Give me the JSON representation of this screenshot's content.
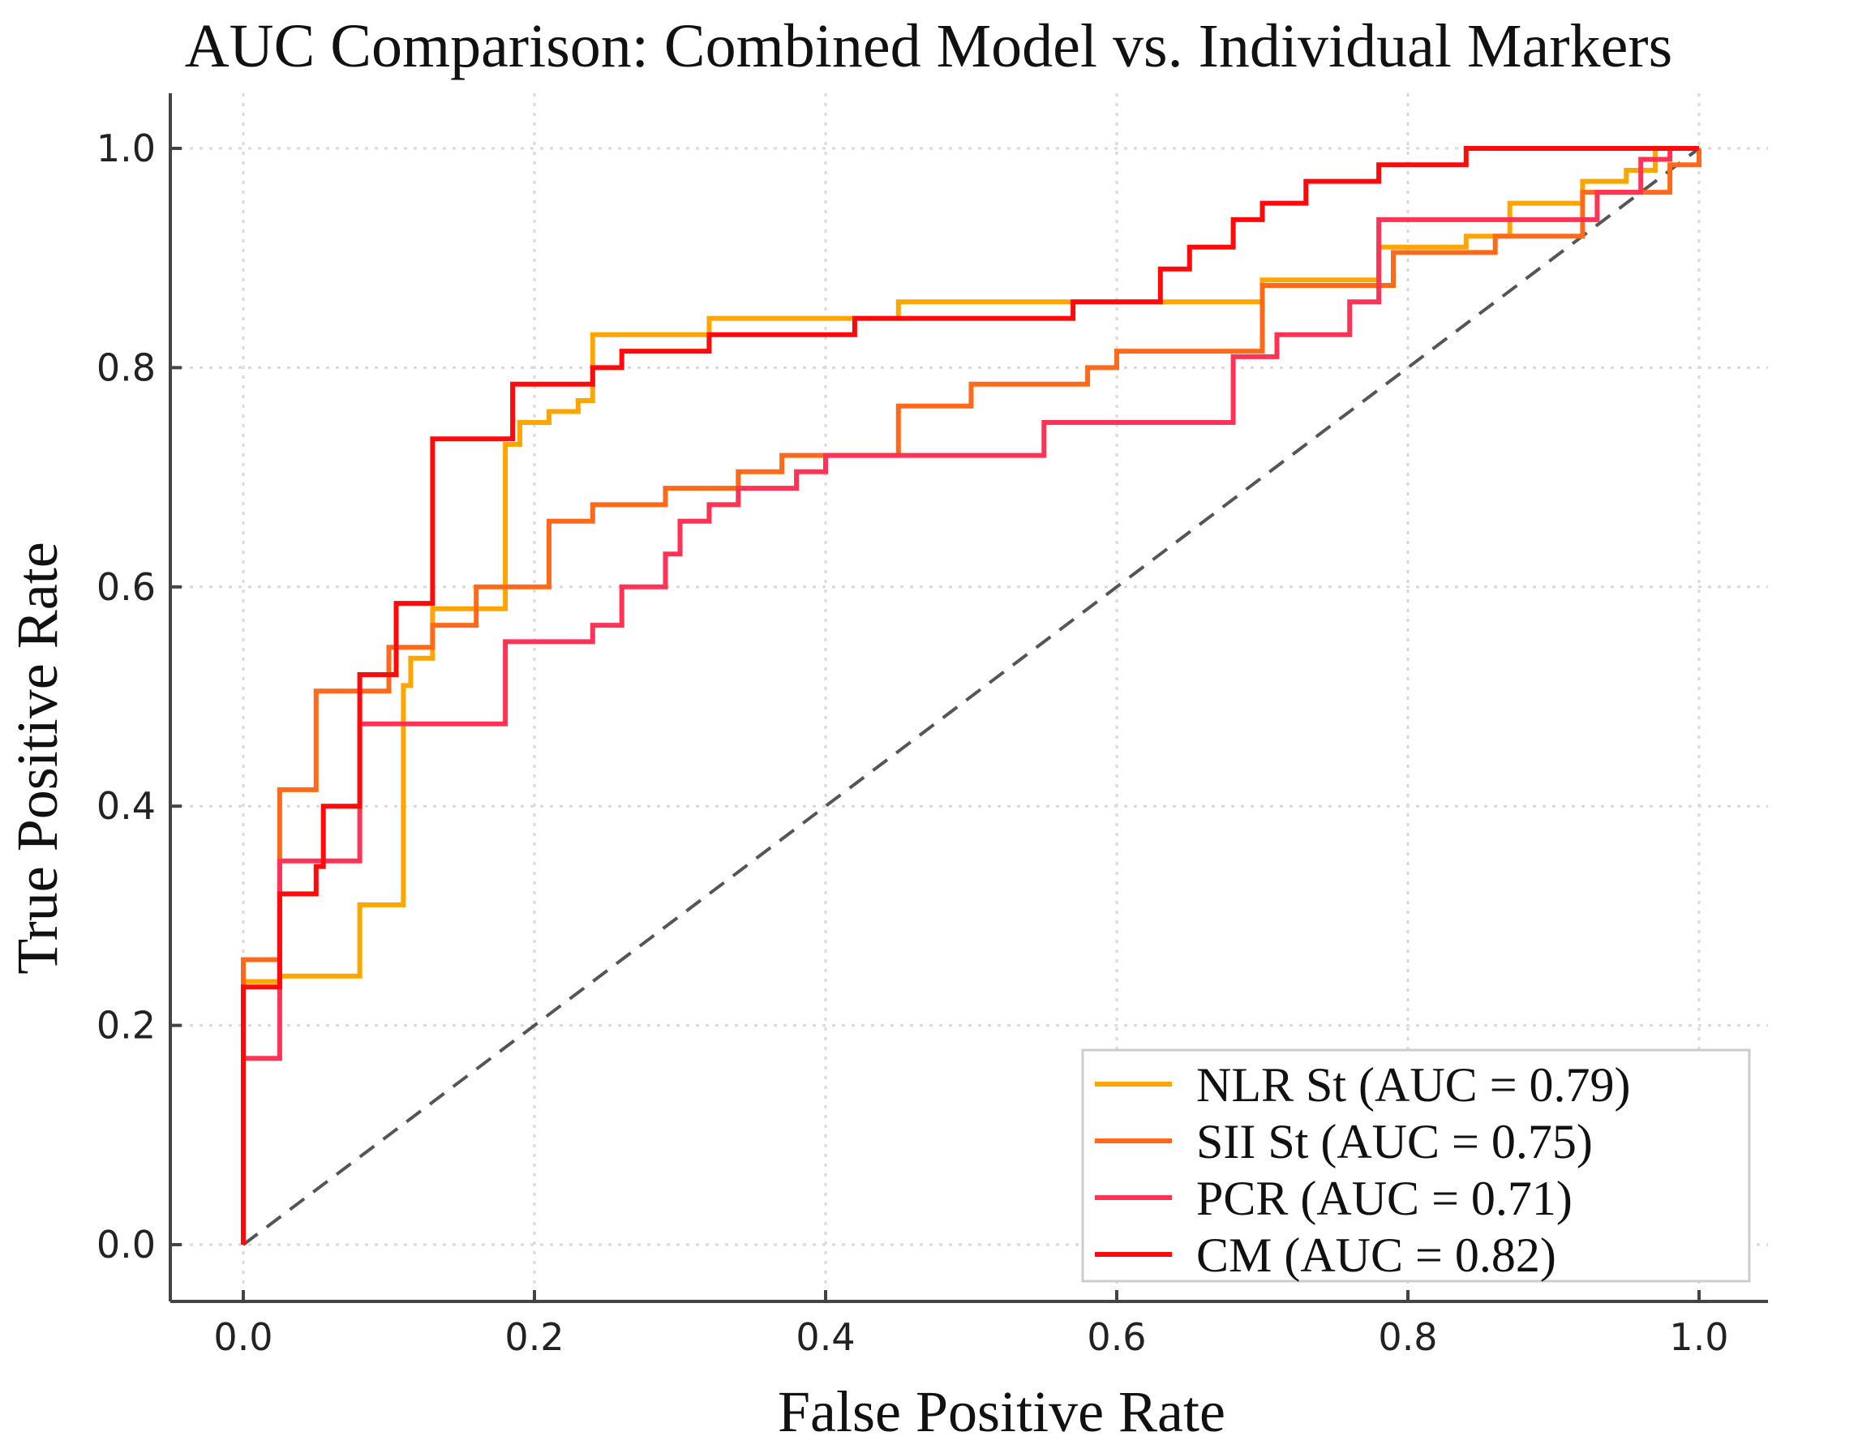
{
  "chart_data": {
    "type": "line",
    "title": "AUC Comparison: Combined Model vs. Individual Markers",
    "xlabel": "False Positive Rate",
    "ylabel": "True Positive Rate",
    "xlim": [
      0.0,
      1.0
    ],
    "ylim": [
      0.0,
      1.0
    ],
    "xticks": [
      "0.0",
      "0.2",
      "0.4",
      "0.6",
      "0.8",
      "1.0"
    ],
    "yticks": [
      "0.0",
      "0.2",
      "0.4",
      "0.6",
      "0.8",
      "1.0"
    ],
    "grid": true,
    "legend_position": "bottom-right",
    "diagonal": {
      "style": "dashed",
      "color": "#555555"
    },
    "series": [
      {
        "name": "NLR St",
        "label": "NLR St (AUC = 0.79)",
        "auc": 0.79,
        "color": "#ffa500",
        "points": [
          [
            0,
            0
          ],
          [
            0,
            0.24
          ],
          [
            0.025,
            0.24
          ],
          [
            0.025,
            0.245
          ],
          [
            0.08,
            0.245
          ],
          [
            0.08,
            0.31
          ],
          [
            0.11,
            0.31
          ],
          [
            0.11,
            0.51
          ],
          [
            0.115,
            0.51
          ],
          [
            0.115,
            0.535
          ],
          [
            0.13,
            0.535
          ],
          [
            0.13,
            0.58
          ],
          [
            0.18,
            0.58
          ],
          [
            0.18,
            0.73
          ],
          [
            0.19,
            0.73
          ],
          [
            0.19,
            0.75
          ],
          [
            0.21,
            0.75
          ],
          [
            0.21,
            0.76
          ],
          [
            0.23,
            0.76
          ],
          [
            0.23,
            0.77
          ],
          [
            0.24,
            0.77
          ],
          [
            0.24,
            0.83
          ],
          [
            0.32,
            0.83
          ],
          [
            0.32,
            0.845
          ],
          [
            0.45,
            0.845
          ],
          [
            0.45,
            0.86
          ],
          [
            0.7,
            0.86
          ],
          [
            0.7,
            0.88
          ],
          [
            0.78,
            0.88
          ],
          [
            0.78,
            0.91
          ],
          [
            0.84,
            0.91
          ],
          [
            0.84,
            0.92
          ],
          [
            0.87,
            0.92
          ],
          [
            0.87,
            0.95
          ],
          [
            0.92,
            0.95
          ],
          [
            0.92,
            0.97
          ],
          [
            0.95,
            0.97
          ],
          [
            0.95,
            0.98
          ],
          [
            0.97,
            0.98
          ],
          [
            0.97,
            1.0
          ],
          [
            1.0,
            1.0
          ]
        ]
      },
      {
        "name": "SII St",
        "label": "SII St (AUC = 0.75)",
        "auc": 0.75,
        "color": "#ff6a1a",
        "points": [
          [
            0,
            0
          ],
          [
            0,
            0.26
          ],
          [
            0.025,
            0.26
          ],
          [
            0.025,
            0.415
          ],
          [
            0.05,
            0.415
          ],
          [
            0.05,
            0.505
          ],
          [
            0.1,
            0.505
          ],
          [
            0.1,
            0.545
          ],
          [
            0.13,
            0.545
          ],
          [
            0.13,
            0.565
          ],
          [
            0.16,
            0.565
          ],
          [
            0.16,
            0.6
          ],
          [
            0.21,
            0.6
          ],
          [
            0.21,
            0.66
          ],
          [
            0.24,
            0.66
          ],
          [
            0.24,
            0.675
          ],
          [
            0.29,
            0.675
          ],
          [
            0.29,
            0.69
          ],
          [
            0.34,
            0.69
          ],
          [
            0.34,
            0.705
          ],
          [
            0.37,
            0.705
          ],
          [
            0.37,
            0.72
          ],
          [
            0.45,
            0.72
          ],
          [
            0.45,
            0.765
          ],
          [
            0.5,
            0.765
          ],
          [
            0.5,
            0.785
          ],
          [
            0.58,
            0.785
          ],
          [
            0.58,
            0.8
          ],
          [
            0.6,
            0.8
          ],
          [
            0.6,
            0.815
          ],
          [
            0.7,
            0.815
          ],
          [
            0.7,
            0.875
          ],
          [
            0.79,
            0.875
          ],
          [
            0.79,
            0.905
          ],
          [
            0.86,
            0.905
          ],
          [
            0.86,
            0.92
          ],
          [
            0.92,
            0.92
          ],
          [
            0.92,
            0.96
          ],
          [
            0.98,
            0.96
          ],
          [
            0.98,
            0.985
          ],
          [
            1.0,
            0.985
          ],
          [
            1.0,
            1.0
          ]
        ]
      },
      {
        "name": "PCR",
        "label": "PCR (AUC = 0.71)",
        "auc": 0.71,
        "color": "#ff3355",
        "points": [
          [
            0,
            0
          ],
          [
            0,
            0.17
          ],
          [
            0.025,
            0.17
          ],
          [
            0.025,
            0.35
          ],
          [
            0.08,
            0.35
          ],
          [
            0.08,
            0.475
          ],
          [
            0.18,
            0.475
          ],
          [
            0.18,
            0.55
          ],
          [
            0.24,
            0.55
          ],
          [
            0.24,
            0.565
          ],
          [
            0.26,
            0.565
          ],
          [
            0.26,
            0.6
          ],
          [
            0.29,
            0.6
          ],
          [
            0.29,
            0.63
          ],
          [
            0.3,
            0.63
          ],
          [
            0.3,
            0.66
          ],
          [
            0.32,
            0.66
          ],
          [
            0.32,
            0.675
          ],
          [
            0.34,
            0.675
          ],
          [
            0.34,
            0.69
          ],
          [
            0.38,
            0.69
          ],
          [
            0.38,
            0.705
          ],
          [
            0.4,
            0.705
          ],
          [
            0.4,
            0.72
          ],
          [
            0.55,
            0.72
          ],
          [
            0.55,
            0.75
          ],
          [
            0.68,
            0.75
          ],
          [
            0.68,
            0.81
          ],
          [
            0.71,
            0.81
          ],
          [
            0.71,
            0.83
          ],
          [
            0.76,
            0.83
          ],
          [
            0.76,
            0.86
          ],
          [
            0.78,
            0.86
          ],
          [
            0.78,
            0.935
          ],
          [
            0.93,
            0.935
          ],
          [
            0.93,
            0.96
          ],
          [
            0.96,
            0.96
          ],
          [
            0.96,
            0.99
          ],
          [
            0.98,
            0.99
          ],
          [
            0.98,
            1.0
          ],
          [
            1.0,
            1.0
          ]
        ]
      },
      {
        "name": "CM",
        "label": "CM (AUC = 0.82)",
        "auc": 0.82,
        "color": "#ff0a0a",
        "points": [
          [
            0,
            0
          ],
          [
            0,
            0.235
          ],
          [
            0.025,
            0.235
          ],
          [
            0.025,
            0.32
          ],
          [
            0.05,
            0.32
          ],
          [
            0.05,
            0.345
          ],
          [
            0.055,
            0.345
          ],
          [
            0.055,
            0.4
          ],
          [
            0.08,
            0.4
          ],
          [
            0.08,
            0.52
          ],
          [
            0.105,
            0.52
          ],
          [
            0.105,
            0.585
          ],
          [
            0.13,
            0.585
          ],
          [
            0.13,
            0.735
          ],
          [
            0.185,
            0.735
          ],
          [
            0.185,
            0.785
          ],
          [
            0.24,
            0.785
          ],
          [
            0.24,
            0.8
          ],
          [
            0.26,
            0.8
          ],
          [
            0.26,
            0.815
          ],
          [
            0.32,
            0.815
          ],
          [
            0.32,
            0.83
          ],
          [
            0.42,
            0.83
          ],
          [
            0.42,
            0.845
          ],
          [
            0.57,
            0.845
          ],
          [
            0.57,
            0.86
          ],
          [
            0.63,
            0.86
          ],
          [
            0.63,
            0.89
          ],
          [
            0.65,
            0.89
          ],
          [
            0.65,
            0.91
          ],
          [
            0.68,
            0.91
          ],
          [
            0.68,
            0.935
          ],
          [
            0.7,
            0.935
          ],
          [
            0.7,
            0.95
          ],
          [
            0.73,
            0.95
          ],
          [
            0.73,
            0.97
          ],
          [
            0.78,
            0.97
          ],
          [
            0.78,
            0.985
          ],
          [
            0.84,
            0.985
          ],
          [
            0.84,
            1.0
          ],
          [
            1.0,
            1.0
          ]
        ]
      }
    ]
  }
}
